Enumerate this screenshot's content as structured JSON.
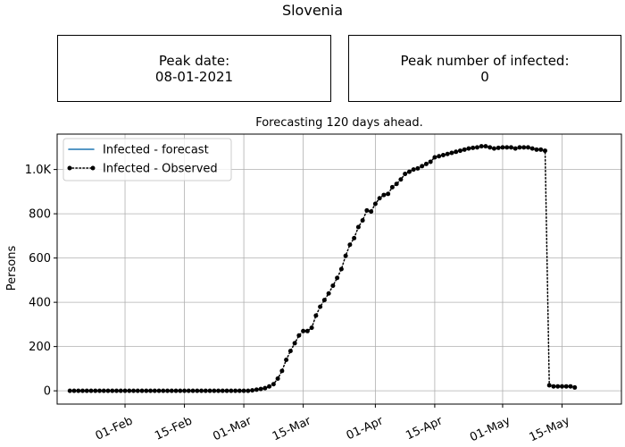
{
  "figure": {
    "title": "Slovenia",
    "peak_date_label": "Peak date:",
    "peak_date_value": "08-01-2021",
    "peak_infected_label": "Peak number of infected:",
    "peak_infected_value": "0"
  },
  "chart_data": {
    "type": "line",
    "title": "Forecasting 120 days ahead.",
    "xlabel": "",
    "ylabel": "Persons",
    "x_start": "2021-01-19",
    "x_range_days": [
      -3,
      130
    ],
    "xticks": [
      {
        "day": 13,
        "label": "01-Feb"
      },
      {
        "day": 27,
        "label": "15-Feb"
      },
      {
        "day": 41,
        "label": "01-Mar"
      },
      {
        "day": 55,
        "label": "15-Mar"
      },
      {
        "day": 72,
        "label": "01-Apr"
      },
      {
        "day": 86,
        "label": "15-Apr"
      },
      {
        "day": 102,
        "label": "01-May"
      },
      {
        "day": 116,
        "label": "15-May"
      }
    ],
    "ylim": [
      -60,
      1160
    ],
    "yticks": [
      {
        "value": 0,
        "label": "0"
      },
      {
        "value": 200,
        "label": "200"
      },
      {
        "value": 400,
        "label": "400"
      },
      {
        "value": 600,
        "label": "600"
      },
      {
        "value": 800,
        "label": "800"
      },
      {
        "value": 1000,
        "label": "1.0K"
      }
    ],
    "grid": true,
    "legend_position": "top-left",
    "series": [
      {
        "name": "Infected - forecast",
        "style": "solid",
        "color": "#1f77b4",
        "values": []
      },
      {
        "name": "Infected - Observed",
        "style": "dotted-markers",
        "color": "#000000",
        "start_day": 0,
        "values": [
          0,
          0,
          0,
          0,
          0,
          0,
          0,
          0,
          0,
          0,
          0,
          0,
          0,
          0,
          0,
          0,
          0,
          0,
          0,
          0,
          0,
          0,
          0,
          0,
          0,
          0,
          0,
          0,
          0,
          0,
          0,
          0,
          0,
          0,
          0,
          0,
          0,
          0,
          0,
          0,
          0,
          0,
          0,
          2,
          5,
          8,
          12,
          20,
          30,
          55,
          90,
          140,
          180,
          215,
          250,
          270,
          270,
          285,
          340,
          380,
          410,
          440,
          475,
          510,
          550,
          610,
          660,
          690,
          740,
          770,
          815,
          810,
          845,
          870,
          885,
          890,
          920,
          935,
          955,
          980,
          990,
          1000,
          1005,
          1015,
          1025,
          1035,
          1055,
          1060,
          1065,
          1070,
          1075,
          1080,
          1085,
          1090,
          1095,
          1098,
          1100,
          1105,
          1105,
          1100,
          1095,
          1098,
          1100,
          1100,
          1100,
          1095,
          1100,
          1100,
          1100,
          1095,
          1090,
          1090,
          1085,
          25,
          20,
          20,
          20,
          20,
          20,
          15
        ]
      }
    ]
  }
}
